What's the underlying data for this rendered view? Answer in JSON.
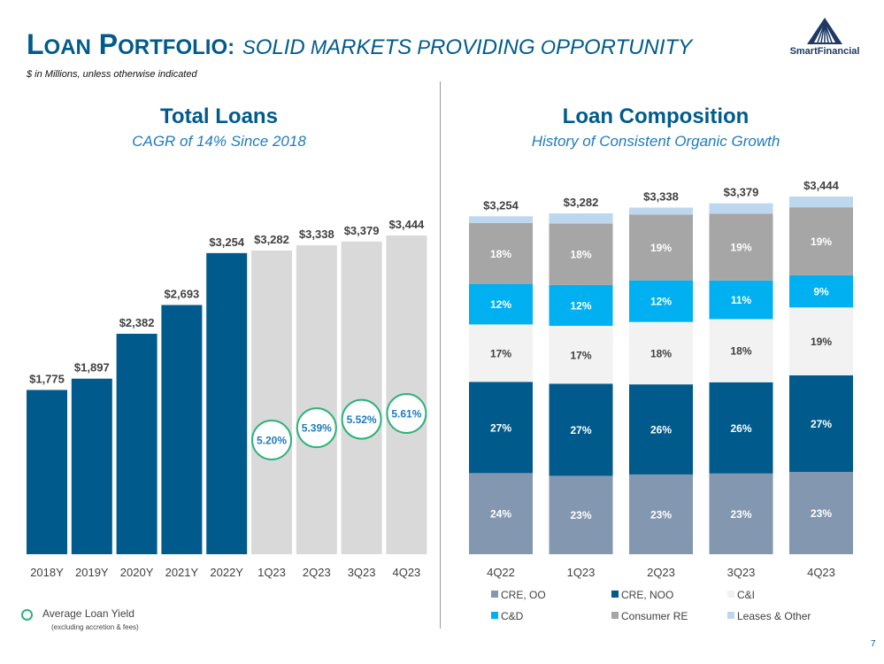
{
  "header": {
    "title_main_cap": "L",
    "title_main_rest": "OAN",
    "title_main_cap2": "P",
    "title_main_rest2": "ORTFOLIO:",
    "title_sub_cap": "S",
    "title_sub_rest": "OLID",
    "title_sub_cap2": "M",
    "title_sub_rest2": "ARKETS",
    "title_sub_cap3": "P",
    "title_sub_rest3": "ROVIDING",
    "title_sub_cap4": "O",
    "title_sub_rest4": "PPORTUNITY",
    "subtitle": "$ in Millions, unless otherwise indicated"
  },
  "logo": {
    "text": "SmartFinancial"
  },
  "page_number": "7",
  "left_panel": {
    "title": "Total Loans",
    "subtitle": "CAGR of 14% Since 2018"
  },
  "right_panel": {
    "title": "Loan Composition",
    "subtitle": "History of Consistent Organic Growth"
  },
  "yield_legend": {
    "label": "Average Loan Yield",
    "note": "(excluding accretion & fees)"
  },
  "colors": {
    "dark_blue": "#005b8c",
    "light_gray": "#d9d9d9",
    "yield_green": "#2db37a",
    "yield_text": "#1f7bbf",
    "cre_oo": "#8497b0",
    "cre_noo": "#005b8c",
    "ci": "#f2f2f2",
    "cd": "#00b0f0",
    "consumer_re": "#a6a6a6",
    "leases": "#bdd7ee"
  },
  "chart_data": [
    {
      "type": "bar",
      "title": "Total Loans",
      "categories": [
        "2018Y",
        "2019Y",
        "2020Y",
        "2021Y",
        "2022Y",
        "1Q23",
        "2Q23",
        "3Q23",
        "4Q23"
      ],
      "values": [
        1775,
        1897,
        2382,
        2693,
        3254,
        3282,
        3338,
        3379,
        3444
      ],
      "value_labels": [
        "$1,775",
        "$1,897",
        "$2,382",
        "$2,693",
        "$3,254",
        "$3,282",
        "$3,338",
        "$3,379",
        "$3,444"
      ],
      "bar_colors": [
        "#005b8c",
        "#005b8c",
        "#005b8c",
        "#005b8c",
        "#005b8c",
        "#d9d9d9",
        "#d9d9d9",
        "#d9d9d9",
        "#d9d9d9"
      ],
      "ylim": [
        0,
        3444
      ],
      "yield_labels": [
        null,
        null,
        null,
        null,
        null,
        "5.20%",
        "5.39%",
        "5.52%",
        "5.61%"
      ],
      "yield_values": [
        null,
        null,
        null,
        null,
        null,
        5.2,
        5.39,
        5.52,
        5.61
      ]
    },
    {
      "type": "bar",
      "stacked": true,
      "normalized": true,
      "title": "Loan Composition",
      "categories": [
        "4Q22",
        "1Q23",
        "2Q23",
        "3Q23",
        "4Q23"
      ],
      "totals": [
        "$3,254",
        "$3,282",
        "$3,338",
        "$3,379",
        "$3,444"
      ],
      "total_values": [
        3254,
        3282,
        3338,
        3379,
        3444
      ],
      "series": [
        {
          "name": "CRE, OO",
          "color": "#8497b0",
          "text_color": "#ffffff",
          "values": [
            24,
            23,
            23,
            23,
            23
          ],
          "labels": [
            "24%",
            "23%",
            "23%",
            "23%",
            "23%"
          ]
        },
        {
          "name": "CRE, NOO",
          "color": "#005b8c",
          "text_color": "#ffffff",
          "values": [
            27,
            27,
            26,
            26,
            27
          ],
          "labels": [
            "27%",
            "27%",
            "26%",
            "26%",
            "27%"
          ]
        },
        {
          "name": "C&I",
          "color": "#f2f2f2",
          "text_color": "#404040",
          "values": [
            17,
            17,
            18,
            18,
            19
          ],
          "labels": [
            "17%",
            "17%",
            "18%",
            "18%",
            "19%"
          ]
        },
        {
          "name": "C&D",
          "color": "#00b0f0",
          "text_color": "#ffffff",
          "values": [
            12,
            12,
            12,
            11,
            9
          ],
          "labels": [
            "12%",
            "12%",
            "12%",
            "11%",
            "9%"
          ]
        },
        {
          "name": "Consumer RE",
          "color": "#a6a6a6",
          "text_color": "#ffffff",
          "values": [
            18,
            18,
            19,
            19,
            19
          ],
          "labels": [
            "18%",
            "18%",
            "19%",
            "19%",
            "19%"
          ]
        },
        {
          "name": "Leases & Other",
          "color": "#bdd7ee",
          "text_color": "#ffffff",
          "values": [
            2,
            3,
            2,
            3,
            3
          ],
          "labels": [
            null,
            null,
            null,
            null,
            null
          ]
        }
      ],
      "legend_position": "bottom"
    }
  ]
}
